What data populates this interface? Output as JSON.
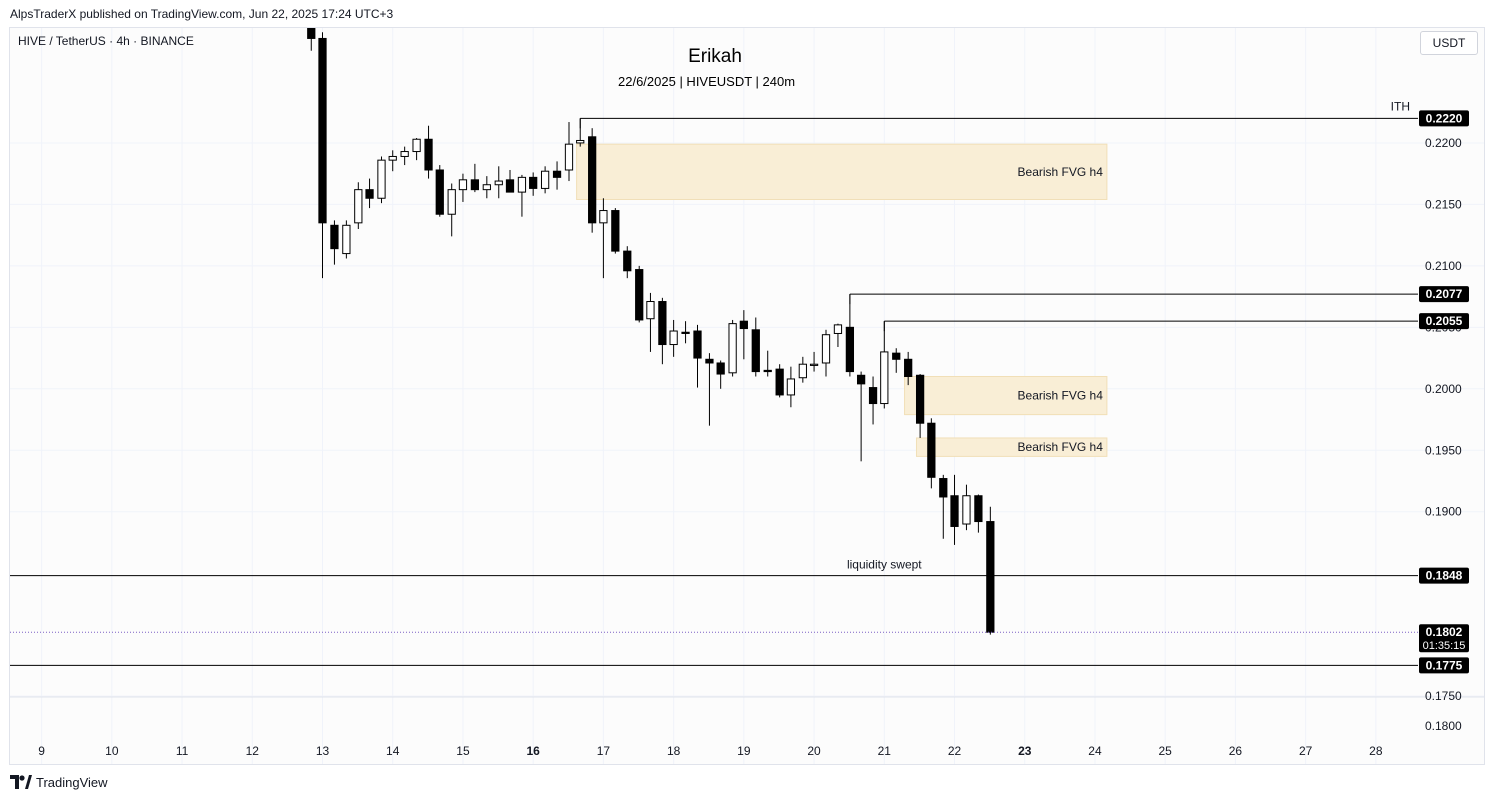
{
  "header": {
    "published": "AlpsTraderX published on TradingView.com, Jun 22, 2025 17:24 UTC+3"
  },
  "symbol_info": "HIVE / TetherUS · 4h · BINANCE",
  "currency": "USDT",
  "footer": {
    "logo_text": "TradingView"
  },
  "colors": {
    "bull_fill": "#ffffff",
    "bear_fill": "#000000",
    "candle_outline": "#000000",
    "fvg_fill": "#f9eed6",
    "fvg_border": "#f1dfb7",
    "level_line": "#000000",
    "current_price_line": "#7b5fc4",
    "grid": "#f0f3fa",
    "axis_text": "#131722"
  },
  "chart_data": {
    "type": "candlestick",
    "title": "Erikah",
    "subtitle": "22/6/2025 | HIVEUSDT | 240m",
    "x_axis": {
      "unit": "day (June 2025)",
      "range": [
        8.55,
        28.6
      ],
      "ticks": [
        {
          "x": 9,
          "label": "9",
          "bold": false
        },
        {
          "x": 10,
          "label": "10",
          "bold": false
        },
        {
          "x": 11,
          "label": "11",
          "bold": false
        },
        {
          "x": 12,
          "label": "12",
          "bold": false
        },
        {
          "x": 13,
          "label": "13",
          "bold": false
        },
        {
          "x": 14,
          "label": "14",
          "bold": false
        },
        {
          "x": 15,
          "label": "15",
          "bold": false
        },
        {
          "x": 16,
          "label": "16",
          "bold": true
        },
        {
          "x": 17,
          "label": "17",
          "bold": false
        },
        {
          "x": 18,
          "label": "18",
          "bold": false
        },
        {
          "x": 19,
          "label": "19",
          "bold": false
        },
        {
          "x": 20,
          "label": "20",
          "bold": false
        },
        {
          "x": 21,
          "label": "21",
          "bold": false
        },
        {
          "x": 22,
          "label": "22",
          "bold": false
        },
        {
          "x": 23,
          "label": "23",
          "bold": true
        },
        {
          "x": 24,
          "label": "24",
          "bold": false
        },
        {
          "x": 25,
          "label": "25",
          "bold": false
        },
        {
          "x": 26,
          "label": "26",
          "bold": false
        },
        {
          "x": 27,
          "label": "27",
          "bold": false
        },
        {
          "x": 28,
          "label": "28",
          "bold": false
        }
      ]
    },
    "y_axis": {
      "unit": "USDT",
      "range": [
        0.17143,
        0.22935
      ],
      "ticks": [
        {
          "v": 0.22,
          "label": "0.2200"
        },
        {
          "v": 0.215,
          "label": "0.2150"
        },
        {
          "v": 0.21,
          "label": "0.2100"
        },
        {
          "v": 0.205,
          "label": "0.2050"
        },
        {
          "v": 0.2,
          "label": "0.2000"
        },
        {
          "v": 0.195,
          "label": "0.1950"
        },
        {
          "v": 0.19,
          "label": "0.1900"
        },
        {
          "v": 0.175,
          "label": "0.1750"
        }
      ],
      "extra_label": "0.1800"
    },
    "grid": true,
    "candles": [
      {
        "t": 12.84,
        "o": 0.23,
        "h": 0.231,
        "l": 0.2275,
        "c": 0.2285
      },
      {
        "t": 13.0,
        "o": 0.2285,
        "h": 0.229,
        "l": 0.209,
        "c": 0.2135
      },
      {
        "t": 13.17,
        "o": 0.2133,
        "h": 0.2137,
        "l": 0.2101,
        "c": 0.2114
      },
      {
        "t": 13.34,
        "o": 0.211,
        "h": 0.2137,
        "l": 0.2106,
        "c": 0.2133
      },
      {
        "t": 13.51,
        "o": 0.2135,
        "h": 0.2168,
        "l": 0.213,
        "c": 0.2162
      },
      {
        "t": 13.67,
        "o": 0.2162,
        "h": 0.2171,
        "l": 0.2147,
        "c": 0.2155
      },
      {
        "t": 13.84,
        "o": 0.2155,
        "h": 0.2189,
        "l": 0.2151,
        "c": 0.2186
      },
      {
        "t": 14.0,
        "o": 0.2186,
        "h": 0.2194,
        "l": 0.2177,
        "c": 0.2189
      },
      {
        "t": 14.17,
        "o": 0.2189,
        "h": 0.2197,
        "l": 0.2182,
        "c": 0.2193
      },
      {
        "t": 14.34,
        "o": 0.2193,
        "h": 0.2204,
        "l": 0.2186,
        "c": 0.2203
      },
      {
        "t": 14.51,
        "o": 0.2203,
        "h": 0.2214,
        "l": 0.2171,
        "c": 0.2178
      },
      {
        "t": 14.67,
        "o": 0.2178,
        "h": 0.2182,
        "l": 0.214,
        "c": 0.2142
      },
      {
        "t": 14.84,
        "o": 0.2142,
        "h": 0.2167,
        "l": 0.2124,
        "c": 0.2162
      },
      {
        "t": 15.0,
        "o": 0.2162,
        "h": 0.2175,
        "l": 0.2152,
        "c": 0.217
      },
      {
        "t": 15.17,
        "o": 0.217,
        "h": 0.2183,
        "l": 0.216,
        "c": 0.2162
      },
      {
        "t": 15.34,
        "o": 0.2162,
        "h": 0.2173,
        "l": 0.2155,
        "c": 0.2166
      },
      {
        "t": 15.51,
        "o": 0.2166,
        "h": 0.2181,
        "l": 0.2155,
        "c": 0.2169
      },
      {
        "t": 15.67,
        "o": 0.217,
        "h": 0.2178,
        "l": 0.216,
        "c": 0.216
      },
      {
        "t": 15.84,
        "o": 0.216,
        "h": 0.2174,
        "l": 0.214,
        "c": 0.2172
      },
      {
        "t": 16.0,
        "o": 0.2172,
        "h": 0.2176,
        "l": 0.2157,
        "c": 0.2163
      },
      {
        "t": 16.17,
        "o": 0.2163,
        "h": 0.2181,
        "l": 0.2159,
        "c": 0.2177
      },
      {
        "t": 16.34,
        "o": 0.2177,
        "h": 0.2185,
        "l": 0.2162,
        "c": 0.2172
      },
      {
        "t": 16.51,
        "o": 0.2178,
        "h": 0.2217,
        "l": 0.2169,
        "c": 0.2199
      },
      {
        "t": 16.67,
        "o": 0.22,
        "h": 0.222,
        "l": 0.2197,
        "c": 0.2202
      },
      {
        "t": 16.84,
        "o": 0.2205,
        "h": 0.2212,
        "l": 0.2127,
        "c": 0.2135
      },
      {
        "t": 17.0,
        "o": 0.2135,
        "h": 0.2155,
        "l": 0.209,
        "c": 0.2145
      },
      {
        "t": 17.17,
        "o": 0.2145,
        "h": 0.2147,
        "l": 0.211,
        "c": 0.2112
      },
      {
        "t": 17.34,
        "o": 0.2112,
        "h": 0.2116,
        "l": 0.209,
        "c": 0.2096
      },
      {
        "t": 17.51,
        "o": 0.2097,
        "h": 0.21,
        "l": 0.2054,
        "c": 0.2056
      },
      {
        "t": 17.67,
        "o": 0.2057,
        "h": 0.2078,
        "l": 0.203,
        "c": 0.2071
      },
      {
        "t": 17.84,
        "o": 0.2071,
        "h": 0.2074,
        "l": 0.202,
        "c": 0.2036
      },
      {
        "t": 18.0,
        "o": 0.2036,
        "h": 0.2056,
        "l": 0.2026,
        "c": 0.2047
      },
      {
        "t": 18.17,
        "o": 0.2046,
        "h": 0.2055,
        "l": 0.2037,
        "c": 0.2045
      },
      {
        "t": 18.34,
        "o": 0.2047,
        "h": 0.2052,
        "l": 0.2001,
        "c": 0.2025
      },
      {
        "t": 18.51,
        "o": 0.2024,
        "h": 0.2029,
        "l": 0.197,
        "c": 0.2021
      },
      {
        "t": 18.67,
        "o": 0.2021,
        "h": 0.2023,
        "l": 0.2,
        "c": 0.2012
      },
      {
        "t": 18.84,
        "o": 0.2013,
        "h": 0.2056,
        "l": 0.201,
        "c": 0.2053
      },
      {
        "t": 19.0,
        "o": 0.2055,
        "h": 0.2064,
        "l": 0.2024,
        "c": 0.2049
      },
      {
        "t": 19.17,
        "o": 0.2048,
        "h": 0.2058,
        "l": 0.201,
        "c": 0.2014
      },
      {
        "t": 19.34,
        "o": 0.2015,
        "h": 0.2031,
        "l": 0.201,
        "c": 0.2014
      },
      {
        "t": 19.51,
        "o": 0.2016,
        "h": 0.202,
        "l": 0.1993,
        "c": 0.1995
      },
      {
        "t": 19.67,
        "o": 0.1995,
        "h": 0.2018,
        "l": 0.1985,
        "c": 0.2008
      },
      {
        "t": 19.84,
        "o": 0.2009,
        "h": 0.2026,
        "l": 0.2005,
        "c": 0.202
      },
      {
        "t": 20.0,
        "o": 0.2019,
        "h": 0.203,
        "l": 0.2014,
        "c": 0.202
      },
      {
        "t": 20.17,
        "o": 0.2021,
        "h": 0.2048,
        "l": 0.201,
        "c": 0.2044
      },
      {
        "t": 20.34,
        "o": 0.2045,
        "h": 0.2053,
        "l": 0.2034,
        "c": 0.2052
      },
      {
        "t": 20.51,
        "o": 0.205,
        "h": 0.2077,
        "l": 0.201,
        "c": 0.2014
      },
      {
        "t": 20.67,
        "o": 0.2011,
        "h": 0.2014,
        "l": 0.1941,
        "c": 0.2004
      },
      {
        "t": 20.84,
        "o": 0.2001,
        "h": 0.201,
        "l": 0.1971,
        "c": 0.1988
      },
      {
        "t": 21.0,
        "o": 0.1988,
        "h": 0.2055,
        "l": 0.1984,
        "c": 0.203
      },
      {
        "t": 21.17,
        "o": 0.2029,
        "h": 0.2033,
        "l": 0.2013,
        "c": 0.2024
      },
      {
        "t": 21.34,
        "o": 0.2024,
        "h": 0.203,
        "l": 0.2003,
        "c": 0.201
      },
      {
        "t": 21.51,
        "o": 0.2011,
        "h": 0.2012,
        "l": 0.196,
        "c": 0.1972
      },
      {
        "t": 21.67,
        "o": 0.1972,
        "h": 0.1976,
        "l": 0.1919,
        "c": 0.1928
      },
      {
        "t": 21.84,
        "o": 0.1927,
        "h": 0.193,
        "l": 0.1878,
        "c": 0.1912
      },
      {
        "t": 22.0,
        "o": 0.1913,
        "h": 0.193,
        "l": 0.1873,
        "c": 0.1888
      },
      {
        "t": 22.17,
        "o": 0.189,
        "h": 0.1922,
        "l": 0.1885,
        "c": 0.1913
      },
      {
        "t": 22.34,
        "o": 0.1913,
        "h": 0.1914,
        "l": 0.1883,
        "c": 0.1892
      },
      {
        "t": 22.51,
        "o": 0.1892,
        "h": 0.1904,
        "l": 0.18,
        "c": 0.1802
      }
    ],
    "zones": [
      {
        "label": "Bearish FVG h4",
        "x_start": 16.67,
        "x_end": 24.17,
        "top": 0.2199,
        "bottom": 0.2154
      },
      {
        "label": "Bearish FVG h4",
        "x_start": 21.34,
        "x_end": 24.17,
        "top": 0.201,
        "bottom": 0.1979
      },
      {
        "label": "Bearish FVG h4",
        "x_start": 21.51,
        "x_end": 24.17,
        "top": 0.196,
        "bottom": 0.1945
      }
    ],
    "levels": [
      {
        "value": 0.222,
        "label": "0.2220",
        "x_start": 16.67,
        "note": "ITH",
        "kind": "line"
      },
      {
        "value": 0.2077,
        "label": "0.2077",
        "x_start": 20.51,
        "note": "",
        "kind": "line"
      },
      {
        "value": 0.2055,
        "label": "0.2055",
        "x_start": 21.0,
        "note": "",
        "kind": "line"
      },
      {
        "value": 0.1848,
        "label": "0.1848",
        "x_start": 8.55,
        "note": "liquidity swept",
        "kind": "line"
      },
      {
        "value": 0.1775,
        "label": "0.1775",
        "x_start": 8.55,
        "note": "",
        "kind": "line"
      },
      {
        "value": 0.1802,
        "label": "0.1802",
        "sub_label": "01:35:15",
        "x_start": 8.55,
        "note": "",
        "kind": "current"
      }
    ]
  }
}
